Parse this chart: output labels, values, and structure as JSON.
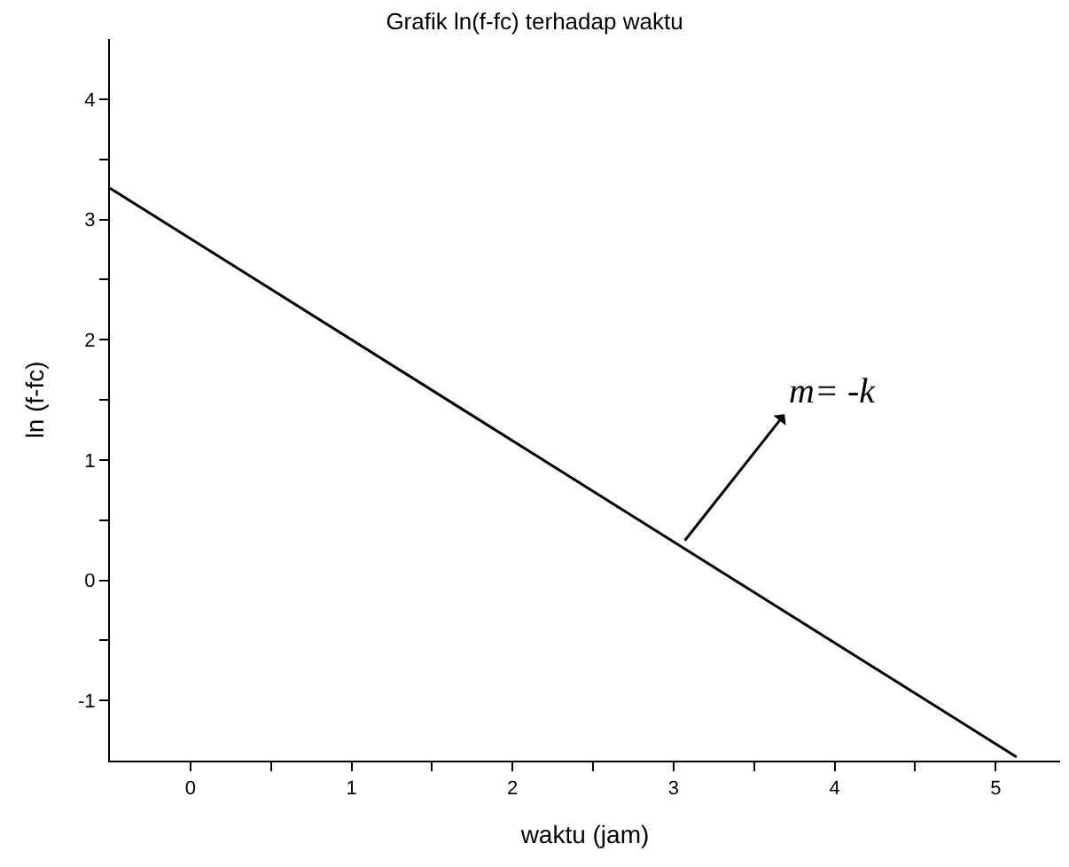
{
  "chart_data": {
    "type": "line",
    "title": "Grafik ln(f-fc) terhadap waktu",
    "xlabel": "waktu (jam)",
    "ylabel": "ln (f-fc)",
    "series": [
      {
        "color": "#000000",
        "x": [
          -0.5,
          5.13
        ],
        "values": [
          3.26,
          -1.47
        ]
      }
    ],
    "xlim": [
      -0.5,
      5.4
    ],
    "ylim": [
      -1.5,
      4.5
    ],
    "xticks": [
      0,
      1,
      2,
      3,
      4,
      5,
      {
        "value": 0.5,
        "label": null
      },
      {
        "value": 1.5,
        "label": null
      },
      {
        "value": 2.5,
        "label": null
      },
      {
        "value": 3.5,
        "label": null
      },
      {
        "value": 4.5,
        "label": null
      }
    ],
    "yticks": [
      -1,
      0,
      1,
      2,
      3,
      4,
      {
        "value": -0.5,
        "label": null
      },
      {
        "value": 0.5,
        "label": null
      },
      {
        "value": 1.5,
        "label": null
      },
      {
        "value": 2.5,
        "label": null
      },
      {
        "value": 3.5,
        "label": null
      }
    ],
    "annotations": [
      "m= -k"
    ],
    "marker": "none",
    "line_style": "solid"
  }
}
